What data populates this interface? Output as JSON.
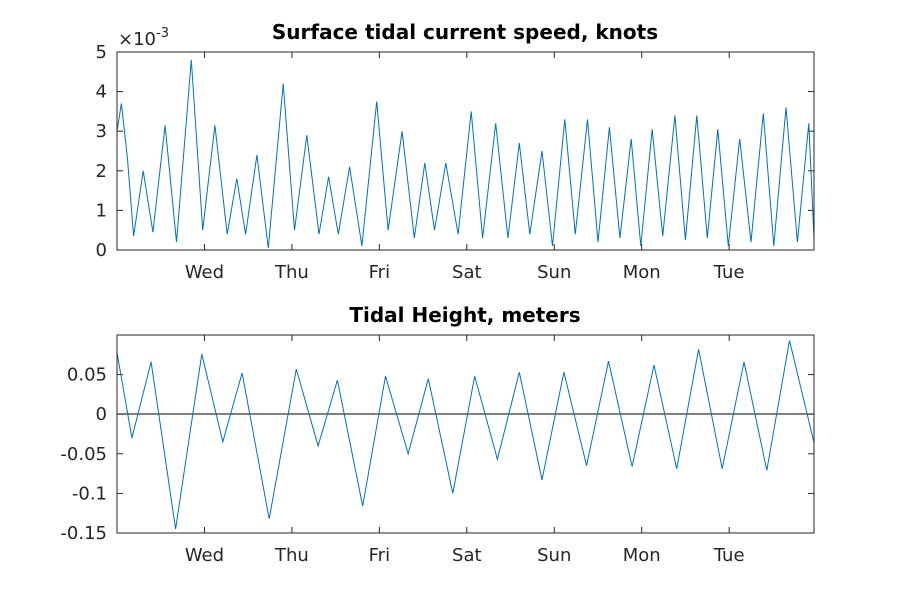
{
  "chart_data": [
    {
      "type": "line",
      "title": "Surface tidal current speed, knots",
      "y_scale_label": "×10",
      "y_scale_exponent": "-3",
      "ylim": [
        0,
        5
      ],
      "y_ticks": [
        "0",
        "1",
        "2",
        "3",
        "4",
        "5"
      ],
      "xlim": [
        0,
        7.97
      ],
      "x_ticks": [
        {
          "label": "Wed",
          "x": 1.0
        },
        {
          "label": "Thu",
          "x": 2.0
        },
        {
          "label": "Fri",
          "x": 3.0
        },
        {
          "label": "Sat",
          "x": 4.0
        },
        {
          "label": "Sun",
          "x": 5.0
        },
        {
          "label": "Mon",
          "x": 6.0
        },
        {
          "label": "Tue",
          "x": 7.0
        }
      ],
      "series_color": "#0072BD",
      "points": [
        [
          0.0,
          3.0
        ],
        [
          0.05,
          3.7
        ],
        [
          0.12,
          2.3
        ],
        [
          0.19,
          0.35
        ],
        [
          0.3,
          2.0
        ],
        [
          0.41,
          0.45
        ],
        [
          0.55,
          3.15
        ],
        [
          0.68,
          0.2
        ],
        [
          0.85,
          4.8
        ],
        [
          0.98,
          0.5
        ],
        [
          1.12,
          3.15
        ],
        [
          1.26,
          0.4
        ],
        [
          1.37,
          1.8
        ],
        [
          1.47,
          0.4
        ],
        [
          1.6,
          2.4
        ],
        [
          1.73,
          0.05
        ],
        [
          1.9,
          4.2
        ],
        [
          2.03,
          0.5
        ],
        [
          2.17,
          2.9
        ],
        [
          2.31,
          0.4
        ],
        [
          2.42,
          1.85
        ],
        [
          2.53,
          0.4
        ],
        [
          2.66,
          2.1
        ],
        [
          2.8,
          0.1
        ],
        [
          2.97,
          3.75
        ],
        [
          3.1,
          0.5
        ],
        [
          3.26,
          3.0
        ],
        [
          3.4,
          0.3
        ],
        [
          3.52,
          2.2
        ],
        [
          3.63,
          0.5
        ],
        [
          3.76,
          2.2
        ],
        [
          3.9,
          0.4
        ],
        [
          4.05,
          3.5
        ],
        [
          4.18,
          0.3
        ],
        [
          4.33,
          3.2
        ],
        [
          4.47,
          0.3
        ],
        [
          4.6,
          2.7
        ],
        [
          4.72,
          0.4
        ],
        [
          4.86,
          2.5
        ],
        [
          4.98,
          0.1
        ],
        [
          5.12,
          3.3
        ],
        [
          5.24,
          0.4
        ],
        [
          5.38,
          3.3
        ],
        [
          5.5,
          0.2
        ],
        [
          5.63,
          3.1
        ],
        [
          5.75,
          0.3
        ],
        [
          5.88,
          2.8
        ],
        [
          5.99,
          0.1
        ],
        [
          6.12,
          3.05
        ],
        [
          6.24,
          0.35
        ],
        [
          6.38,
          3.4
        ],
        [
          6.5,
          0.25
        ],
        [
          6.63,
          3.4
        ],
        [
          6.75,
          0.3
        ],
        [
          6.87,
          3.05
        ],
        [
          6.99,
          0.1
        ],
        [
          7.12,
          2.8
        ],
        [
          7.25,
          0.2
        ],
        [
          7.39,
          3.45
        ],
        [
          7.51,
          0.1
        ],
        [
          7.65,
          3.6
        ],
        [
          7.78,
          0.2
        ],
        [
          7.91,
          3.2
        ],
        [
          7.97,
          0.3
        ]
      ]
    },
    {
      "type": "line",
      "title": "Tidal Height, meters",
      "ylim": [
        -0.15,
        0.1
      ],
      "y_ticks": [
        "-0.15",
        "-0.1",
        "-0.05",
        "0",
        "0.05"
      ],
      "y_tick_values": [
        -0.15,
        -0.1,
        -0.05,
        0,
        0.05
      ],
      "xlim": [
        0,
        7.97
      ],
      "x_ticks": [
        {
          "label": "Wed",
          "x": 1.0
        },
        {
          "label": "Thu",
          "x": 2.0
        },
        {
          "label": "Fri",
          "x": 3.0
        },
        {
          "label": "Sat",
          "x": 4.0
        },
        {
          "label": "Sun",
          "x": 5.0
        },
        {
          "label": "Mon",
          "x": 6.0
        },
        {
          "label": "Tue",
          "x": 7.0
        }
      ],
      "zero_line": true,
      "series_color": "#0072BD",
      "points": [
        [
          0.0,
          0.078
        ],
        [
          0.17,
          -0.03
        ],
        [
          0.39,
          0.066
        ],
        [
          0.67,
          -0.145
        ],
        [
          0.97,
          0.076
        ],
        [
          1.21,
          -0.035
        ],
        [
          1.43,
          0.052
        ],
        [
          1.74,
          -0.132
        ],
        [
          2.05,
          0.057
        ],
        [
          2.3,
          -0.04
        ],
        [
          2.52,
          0.043
        ],
        [
          2.81,
          -0.116
        ],
        [
          3.07,
          0.048
        ],
        [
          3.33,
          -0.05
        ],
        [
          3.56,
          0.045
        ],
        [
          3.84,
          -0.1
        ],
        [
          4.09,
          0.048
        ],
        [
          4.35,
          -0.057
        ],
        [
          4.6,
          0.053
        ],
        [
          4.86,
          -0.083
        ],
        [
          5.11,
          0.053
        ],
        [
          5.37,
          -0.065
        ],
        [
          5.62,
          0.067
        ],
        [
          5.89,
          -0.066
        ],
        [
          6.14,
          0.062
        ],
        [
          6.4,
          -0.069
        ],
        [
          6.65,
          0.082
        ],
        [
          6.92,
          -0.069
        ],
        [
          7.17,
          0.066
        ],
        [
          7.43,
          -0.071
        ],
        [
          7.69,
          0.093
        ],
        [
          7.97,
          -0.036
        ]
      ]
    }
  ]
}
